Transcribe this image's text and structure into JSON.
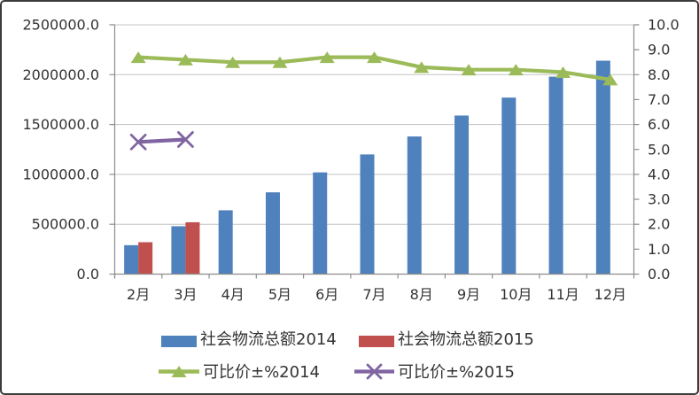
{
  "window": {
    "background": "#ffffff",
    "frame_border_color": "#3b3b3b"
  },
  "chart_data": {
    "type": "bar",
    "subtype": "combo-bar-line-dual-axis",
    "title": "",
    "categories": [
      "2月",
      "3月",
      "4月",
      "5月",
      "6月",
      "7月",
      "8月",
      "9月",
      "10月",
      "11月",
      "12月"
    ],
    "bar_series": [
      {
        "name": "社会物流总额2014",
        "color": "#4F81BD",
        "axis": "left",
        "values": [
          290000,
          480000,
          640000,
          820000,
          1020000,
          1200000,
          1380000,
          1590000,
          1770000,
          1980000,
          2140000
        ]
      },
      {
        "name": "社会物流总额2015",
        "color": "#C0504D",
        "axis": "left",
        "values": [
          320000,
          520000,
          null,
          null,
          null,
          null,
          null,
          null,
          null,
          null,
          null
        ]
      }
    ],
    "line_series": [
      {
        "name": "可比价±%2014",
        "color": "#9BBB59",
        "marker": "triangle",
        "axis": "right",
        "values": [
          8.7,
          8.6,
          8.5,
          8.5,
          8.7,
          8.7,
          8.3,
          8.2,
          8.2,
          8.1,
          7.8
        ]
      },
      {
        "name": "可比价±%2015",
        "color": "#8064A2",
        "marker": "x",
        "axis": "right",
        "values": [
          5.3,
          5.4,
          null,
          null,
          null,
          null,
          null,
          null,
          null,
          null,
          null
        ]
      }
    ],
    "left_axis": {
      "min": 0,
      "max": 2500000,
      "step": 500000,
      "tick_labels": [
        "0.0",
        "500000.0",
        "1000000.0",
        "1500000.0",
        "2000000.0",
        "2500000.0"
      ]
    },
    "right_axis": {
      "min": 0,
      "max": 10,
      "step": 1,
      "tick_labels": [
        "0.0",
        "1.0",
        "2.0",
        "3.0",
        "4.0",
        "5.0",
        "6.0",
        "7.0",
        "8.0",
        "9.0",
        "10.0"
      ]
    },
    "grid": {
      "horizontal": true,
      "color": "#c3c3c3"
    },
    "axis_color": "#8c8c8c",
    "text_color": "#333333",
    "legend_position": "bottom"
  }
}
